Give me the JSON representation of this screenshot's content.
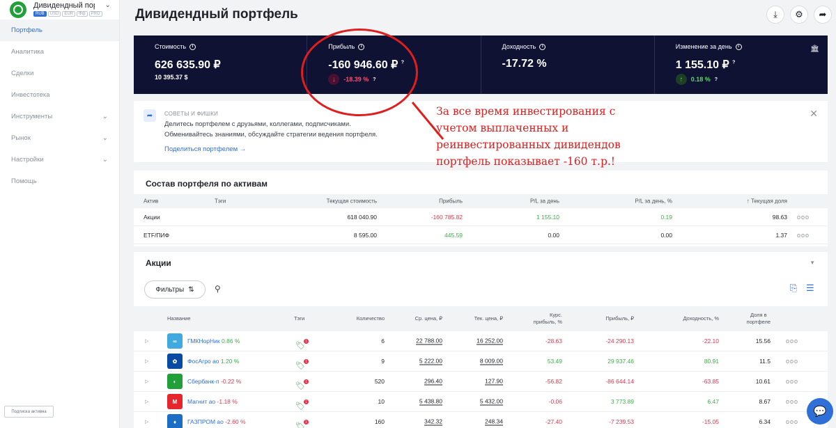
{
  "portfolio": {
    "name": "Дивидендный порт...",
    "currencies": [
      "RUB",
      "USD",
      "EUR",
      "Фф",
      "PRO"
    ]
  },
  "sidebar": {
    "items": [
      {
        "label": "Портфель",
        "active": true,
        "has_chevron": false
      },
      {
        "label": "Аналитика",
        "active": false,
        "has_chevron": false
      },
      {
        "label": "Сделки",
        "active": false,
        "has_chevron": false
      },
      {
        "label": "Инвестотека",
        "active": false,
        "has_chevron": false
      },
      {
        "label": "Инструменты",
        "active": false,
        "has_chevron": true
      },
      {
        "label": "Рынок",
        "active": false,
        "has_chevron": true
      },
      {
        "label": "Настройки",
        "active": false,
        "has_chevron": true
      },
      {
        "label": "Помощь",
        "active": false,
        "has_chevron": false
      }
    ],
    "subscription_label": "Подписка активна"
  },
  "header": {
    "title": "Дивидендный портфель"
  },
  "summary": {
    "value": {
      "label": "Стоимость",
      "main": "626 635.90 ₽",
      "sub": "10 395.37 $"
    },
    "profit": {
      "label": "Прибыль",
      "main": "-160 946.60 ₽",
      "sub": "-18.39 %"
    },
    "yield": {
      "label": "Доходность",
      "main": "-17.72 %"
    },
    "day_change": {
      "label": "Изменение за день",
      "main": "1 155.10 ₽",
      "sub": "0.18 %"
    }
  },
  "tips": {
    "title": "СОВЕТЫ И ФИШКИ",
    "text_line1": "Делитесь портфелем с друзьями, коллегами, подписчиками.",
    "text_line2": "Обменивайтесь знаниями, обсуждайте стратегии ведения портфеля.",
    "link": "Поделиться портфелем →"
  },
  "annotation": {
    "line1": "За все время инвестирования с",
    "line2": "учетом выплаченных и",
    "line3": "реинвестированных дивидендов",
    "line4": "портфель показывает -160 т.р.!"
  },
  "composition": {
    "title": "Состав портфеля по активам",
    "columns": [
      "Актив",
      "Тэги",
      "Текущая стоимость",
      "Прибыль",
      "P/L за день",
      "P/L за день, %",
      "Текущая доля"
    ],
    "rows": [
      {
        "asset": "Акции",
        "value": "618 040.90",
        "profit": "-160 785.82",
        "pl_day": "1 155.10",
        "pl_day_pct": "0.19",
        "share": "98.63"
      },
      {
        "asset": "ETF/ПИФ",
        "value": "8 595.00",
        "profit": "445.59",
        "pl_day": "0.00",
        "pl_day_pct": "0.00",
        "share": "1.37"
      }
    ],
    "menu": "ooo"
  },
  "stocks": {
    "title": "Акции",
    "filter_label": "Фильтры",
    "columns": {
      "name": "Название",
      "tags": "Тэги",
      "qty": "Количество",
      "avg_price": "Ср. цена, ₽",
      "cur_price": "Тек. цена, ₽",
      "fx_profit_1": "Курс.",
      "fx_profit_2": "прибыль, %",
      "profit": "Прибыль, ₽",
      "yield": "Доходность, %",
      "share_1": "Доля в",
      "share_2": "портфеле"
    },
    "rows": [
      {
        "name": "ГМКНорНик",
        "change": "0.86 %",
        "qty": "6",
        "avg": "22 788.00",
        "cur": "16 252.00",
        "fx": "-28.63",
        "profit": "-24 290.13",
        "yield": "-22.10",
        "share": "15.56",
        "logo_color": "#3fa9e0",
        "logo_glyph": "∞"
      },
      {
        "name": "ФосАгро ао",
        "change": "1.20 %",
        "qty": "9",
        "avg": "5 222.00",
        "cur": "8 009.00",
        "fx": "53.49",
        "profit": "29 937.46",
        "yield": "80.91",
        "share": "11.5",
        "logo_color": "#0b4aa2",
        "logo_glyph": "✿"
      },
      {
        "name": "Сбербанк-п",
        "change": "-0.22 %",
        "qty": "520",
        "avg": "296.40",
        "cur": "127.90",
        "fx": "-56.82",
        "profit": "-86 644.14",
        "yield": "-63.85",
        "share": "10.61",
        "logo_color": "#21a038",
        "logo_glyph": "◐"
      },
      {
        "name": "Магнит ао",
        "change": "-1.18 %",
        "qty": "10",
        "avg": "5 438.80",
        "cur": "5 432.00",
        "fx": "-0.06",
        "profit": "3 773.89",
        "yield": "6.47",
        "share": "8.67",
        "logo_color": "#e5262c",
        "logo_glyph": "M"
      },
      {
        "name": "ГАЗПРОМ ао",
        "change": "-2.60 %",
        "qty": "160",
        "avg": "342.32",
        "cur": "248.34",
        "fx": "-27.40",
        "profit": "-7 239.53",
        "yield": "-15.05",
        "share": "6.34",
        "logo_color": "#1a6fc4",
        "logo_glyph": "♦"
      }
    ]
  }
}
